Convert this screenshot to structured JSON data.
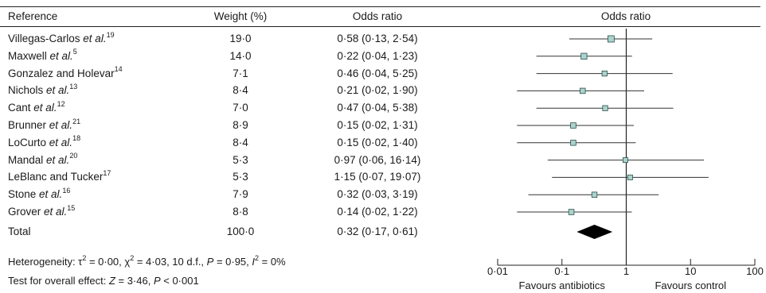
{
  "headers": {
    "reference": "Reference",
    "weight": "Weight (%)",
    "odds_ratio": "Odds ratio",
    "plot": "Odds ratio"
  },
  "studies": [
    {
      "name": "Villegas-Carlos",
      "etal": true,
      "ref": "19",
      "weight": "19·0",
      "or_text": "0·58 (0·13, 2·54)"
    },
    {
      "name": "Maxwell",
      "etal": true,
      "ref": "5",
      "weight": "14·0",
      "or_text": "0·22 (0·04, 1·23)"
    },
    {
      "name": "Gonzalez and Holevar",
      "etal": false,
      "ref": "14",
      "weight": "7·1",
      "or_text": "0·46 (0·04, 5·25)"
    },
    {
      "name": "Nichols",
      "etal": true,
      "ref": "13",
      "weight": "8·4",
      "or_text": "0·21 (0·02, 1·90)"
    },
    {
      "name": "Cant",
      "etal": true,
      "ref": "12",
      "weight": "7·0",
      "or_text": "0·47 (0·04, 5·38)"
    },
    {
      "name": "Brunner",
      "etal": true,
      "ref": "21",
      "weight": "8·9",
      "or_text": "0·15 (0·02, 1·31)"
    },
    {
      "name": "LoCurto",
      "etal": true,
      "ref": "18",
      "weight": "8·4",
      "or_text": "0·15 (0·02, 1·40)"
    },
    {
      "name": "Mandal",
      "etal": true,
      "ref": "20",
      "weight": "5·3",
      "or_text": "0·97 (0·06, 16·14)"
    },
    {
      "name": "LeBlanc and Tucker",
      "etal": false,
      "ref": "17",
      "weight": "5·3",
      "or_text": "1·15 (0·07, 19·07)"
    },
    {
      "name": "Stone",
      "etal": true,
      "ref": "16",
      "weight": "7·9",
      "or_text": "0·32 (0·03, 3·19)"
    },
    {
      "name": "Grover",
      "etal": true,
      "ref": "15",
      "weight": "8·8",
      "or_text": "0·14 (0·02, 1·22)"
    }
  ],
  "total": {
    "label": "Total",
    "weight": "100·0",
    "or_text": "0·32 (0·17, 0·61)"
  },
  "footer": {
    "heterogeneity_prefix": "Heterogeneity: ",
    "heterogeneity_rest": " = 0·00, ",
    "heterogeneity_chi": " = 4·03, 10 d.f., ",
    "heterogeneity_p": " = 0·95, ",
    "heterogeneity_i": " = 0%",
    "overall_prefix": "Test for overall effect: ",
    "overall_z": " = 3·46, ",
    "overall_p": " < 0·001"
  },
  "axis": {
    "favours_left": "Favours antibiotics",
    "favours_right": "Favours control"
  },
  "chart_data": {
    "type": "forest",
    "scale": "log",
    "xlim": [
      0.01,
      100
    ],
    "ticks": [
      0.01,
      0.1,
      1,
      10,
      100
    ],
    "tick_labels": [
      "0·01",
      "0·1",
      "1",
      "10",
      "100"
    ],
    "null_line": 1,
    "points": [
      {
        "or": 0.58,
        "lo": 0.13,
        "hi": 2.54,
        "weight": 19.0
      },
      {
        "or": 0.22,
        "lo": 0.04,
        "hi": 1.23,
        "weight": 14.0
      },
      {
        "or": 0.46,
        "lo": 0.04,
        "hi": 5.25,
        "weight": 7.1
      },
      {
        "or": 0.21,
        "lo": 0.02,
        "hi": 1.9,
        "weight": 8.4
      },
      {
        "or": 0.47,
        "lo": 0.04,
        "hi": 5.38,
        "weight": 7.0
      },
      {
        "or": 0.15,
        "lo": 0.02,
        "hi": 1.31,
        "weight": 8.9
      },
      {
        "or": 0.15,
        "lo": 0.02,
        "hi": 1.4,
        "weight": 8.4
      },
      {
        "or": 0.97,
        "lo": 0.06,
        "hi": 16.14,
        "weight": 5.3
      },
      {
        "or": 1.15,
        "lo": 0.07,
        "hi": 19.07,
        "weight": 5.3
      },
      {
        "or": 0.32,
        "lo": 0.03,
        "hi": 3.19,
        "weight": 7.9
      },
      {
        "or": 0.14,
        "lo": 0.02,
        "hi": 1.22,
        "weight": 8.8
      }
    ],
    "pooled": {
      "or": 0.32,
      "lo": 0.17,
      "hi": 0.61
    },
    "marker_color": "#a9d3cc",
    "diamond_color": "#000000"
  }
}
